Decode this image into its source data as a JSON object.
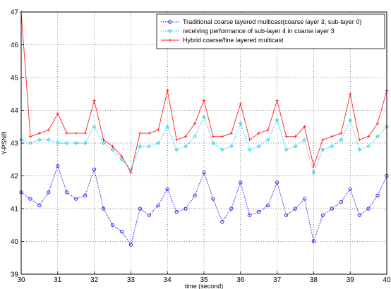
{
  "chart_data": {
    "type": "line",
    "xlabel": "time (second)",
    "ylabel": "Y-PSNR",
    "xlim": [
      30,
      40
    ],
    "ylim": [
      39,
      47
    ],
    "x_ticks": [
      "30",
      "31",
      "32",
      "33",
      "34",
      "35",
      "36",
      "37",
      "38",
      "39",
      "40"
    ],
    "y_ticks": [
      "39",
      "40",
      "41",
      "42",
      "43",
      "44",
      "45",
      "46",
      "47"
    ],
    "grid": true,
    "legend_position": "top-right",
    "x": [
      30.0,
      30.25,
      30.5,
      30.75,
      31.0,
      31.25,
      31.5,
      31.75,
      32.0,
      32.25,
      32.5,
      32.75,
      33.0,
      33.25,
      33.5,
      33.75,
      34.0,
      34.25,
      34.5,
      34.75,
      35.0,
      35.25,
      35.5,
      35.75,
      36.0,
      36.25,
      36.5,
      36.75,
      37.0,
      37.25,
      37.5,
      37.75,
      38.0,
      38.25,
      38.5,
      38.75,
      39.0,
      39.25,
      39.5,
      39.75,
      40.0
    ],
    "series": [
      {
        "name": "Traditional coarse layered multicast(coarse layer 3, sub-layer 0)",
        "color": "#0000ff",
        "marker": "circle",
        "values": [
          41.5,
          41.3,
          41.1,
          41.5,
          42.3,
          41.5,
          41.3,
          41.4,
          42.2,
          41.0,
          40.5,
          40.3,
          39.9,
          41.0,
          40.8,
          41.1,
          41.6,
          40.9,
          41.0,
          41.4,
          42.1,
          41.3,
          40.6,
          41.0,
          41.8,
          40.8,
          40.9,
          41.1,
          41.8,
          40.8,
          41.0,
          41.3,
          40.0,
          40.8,
          41.0,
          41.2,
          41.6,
          40.8,
          41.0,
          41.4,
          42.0
        ]
      },
      {
        "name": "receiving performance of sub-layer 4 in coarse layer 3",
        "color": "#00c8e6",
        "marker": "diamond",
        "values": [
          43.1,
          43.0,
          43.1,
          43.1,
          43.0,
          43.0,
          43.0,
          43.0,
          43.5,
          43.0,
          42.8,
          42.5,
          42.2,
          42.9,
          42.9,
          43.0,
          43.5,
          42.8,
          42.9,
          43.2,
          43.8,
          43.0,
          42.8,
          42.9,
          43.6,
          42.8,
          42.9,
          43.1,
          43.7,
          42.8,
          42.9,
          43.1,
          42.1,
          42.8,
          42.9,
          43.1,
          43.7,
          42.8,
          42.9,
          43.2,
          43.5
        ]
      },
      {
        "name": "Hybrid coarse/fine layered multicast",
        "color": "#ff2020",
        "marker": "plus",
        "values": [
          47.0,
          43.2,
          43.3,
          43.4,
          43.9,
          43.3,
          43.3,
          43.3,
          44.3,
          43.1,
          42.9,
          42.6,
          42.1,
          43.3,
          43.3,
          43.4,
          44.6,
          43.1,
          43.2,
          43.6,
          44.3,
          43.2,
          43.2,
          43.3,
          44.2,
          43.1,
          43.3,
          43.4,
          44.3,
          43.2,
          43.2,
          43.5,
          42.3,
          43.1,
          43.2,
          43.3,
          44.5,
          43.1,
          43.2,
          43.6,
          44.6
        ]
      }
    ]
  }
}
